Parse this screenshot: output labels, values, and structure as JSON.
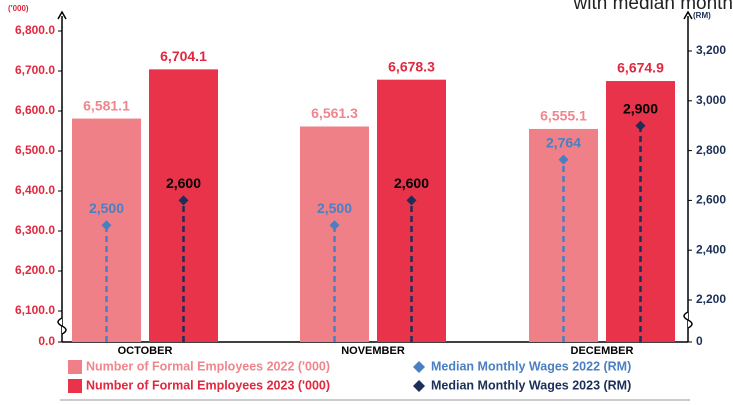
{
  "chart_data": {
    "type": "bar_lollipop",
    "title": "with median month",
    "y_label": "('000)",
    "y2_label": "(RM)",
    "categories": [
      "OCTOBER",
      "NOVEMBER",
      "DECEMBER"
    ],
    "axis_break": true,
    "ylim": [
      0,
      6800
    ],
    "yticks": [
      {
        "value": 0,
        "label": "0.0"
      },
      {
        "value": 6100,
        "label": "6,100.0"
      },
      {
        "value": 6200,
        "label": "6,200.0"
      },
      {
        "value": 6300,
        "label": "6,300.0"
      },
      {
        "value": 6400,
        "label": "6,400.0"
      },
      {
        "value": 6500,
        "label": "6,500.0"
      },
      {
        "value": 6600,
        "label": "6,600.0"
      },
      {
        "value": 6700,
        "label": "6,700.0"
      },
      {
        "value": 6800,
        "label": "6,800.0"
      }
    ],
    "y2lim": [
      0,
      3200
    ],
    "y2ticks": [
      0,
      {
        "value": 2200,
        "label": "2,200"
      },
      {
        "value": 2400,
        "label": "2,400"
      },
      {
        "value": 2600,
        "label": "2,600"
      },
      {
        "value": 2800,
        "label": "2,800"
      },
      {
        "value": 3000,
        "label": "3,000"
      },
      {
        "value": 3200,
        "label": "3,200"
      }
    ],
    "series": [
      {
        "name": "Number of Formal Employees 2022 ('000)",
        "kind": "bar",
        "color": "#f08088",
        "label_color": "#f0868d",
        "values": [
          6581.1,
          6561.3,
          6555.1
        ],
        "value_labels": [
          "6,581.1",
          "6,561.3",
          "6,555.1"
        ]
      },
      {
        "name": "Number of Formal Employees 2023 ('000)",
        "kind": "bar",
        "color": "#e8334a",
        "label_color": "#e0283e",
        "values": [
          6704.1,
          6678.3,
          6674.9
        ],
        "value_labels": [
          "6,704.1",
          "6,678.3",
          "6,674.9"
        ]
      },
      {
        "name": "Median Monthly Wages 2022 (RM)",
        "kind": "lollipop",
        "axis": "y2",
        "color": "#4a7fc1",
        "label_color": "#4a7fc1",
        "values": [
          2500,
          2500,
          2764
        ],
        "value_labels": [
          "2,500",
          "2,500",
          "2,764"
        ]
      },
      {
        "name": "Median Monthly Wages 2023 (RM)",
        "kind": "lollipop",
        "axis": "y2",
        "color": "#1b2f57",
        "label_color": "#000000",
        "values": [
          2600,
          2600,
          2900
        ],
        "value_labels": [
          "2,600",
          "2,600",
          "2,900"
        ]
      }
    ]
  }
}
